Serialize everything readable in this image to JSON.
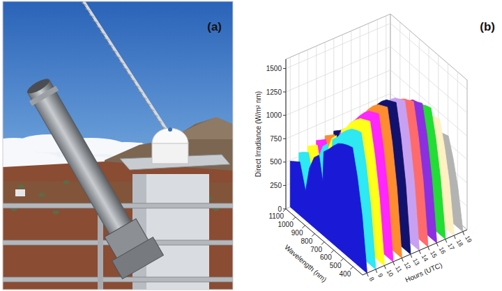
{
  "photo_panel": {
    "label": "(a)"
  },
  "chart_data": {
    "type": "area3d",
    "annotations": [
      "(b)"
    ],
    "x_label": "Wavelength (nm)",
    "y_label": "Direct Irradiance (W/m² nm)",
    "z_label": "Hours (UTC)",
    "x": [
      300,
      350,
      400,
      450,
      500,
      550,
      600,
      650,
      700,
      750,
      760,
      800,
      850,
      900,
      940,
      1000,
      1050,
      1100
    ],
    "xlim": [
      300,
      1100
    ],
    "xticks": [
      400,
      500,
      600,
      700,
      800,
      900,
      1000,
      1100
    ],
    "ylim": [
      0,
      1600
    ],
    "yticks": [
      0,
      250,
      500,
      750,
      1000,
      1250,
      1500
    ],
    "zlim": [
      7.5,
      19.5
    ],
    "zticks": [
      8,
      9,
      10,
      11,
      12,
      13,
      14,
      15,
      16,
      17,
      18,
      19
    ],
    "z": [
      8,
      9,
      10,
      11,
      12,
      13,
      14,
      15,
      16,
      17,
      18,
      19
    ],
    "grid": true,
    "series": [
      {
        "color": "#1a1ad6",
        "values": [
          25,
          570,
          940,
          1210,
          1190,
          1160,
          1120,
          1050,
          970,
          900,
          570,
          820,
          750,
          590,
          310,
          570,
          530,
          490
        ]
      },
      {
        "color": "#2ee8f2",
        "values": [
          30,
          630,
          1040,
          1330,
          1310,
          1280,
          1220,
          1150,
          1060,
          990,
          630,
          900,
          830,
          650,
          340,
          630,
          590,
          540
        ]
      },
      {
        "color": "#ffff1a",
        "values": [
          30,
          670,
          1090,
          1410,
          1380,
          1350,
          1290,
          1220,
          1120,
          1050,
          670,
          950,
          870,
          680,
          360,
          670,
          620,
          570
        ]
      },
      {
        "color": "#ff26ff",
        "values": [
          30,
          690,
          1130,
          1450,
          1420,
          1390,
          1330,
          1250,
          1160,
          1080,
          690,
          980,
          900,
          710,
          370,
          690,
          640,
          590
        ]
      },
      {
        "color": "#ff8c2e",
        "values": [
          30,
          700,
          1150,
          1480,
          1450,
          1420,
          1360,
          1280,
          1180,
          1100,
          700,
          1000,
          920,
          720,
          380,
          700,
          650,
          600
        ]
      },
      {
        "color": "#12126e",
        "values": [
          30,
          710,
          1160,
          1490,
          1460,
          1430,
          1370,
          1290,
          1190,
          1110,
          710,
          1010,
          930,
          730,
          380,
          710,
          660,
          610
        ]
      },
      {
        "color": "#c8a0f2",
        "values": [
          30,
          690,
          1140,
          1470,
          1440,
          1410,
          1350,
          1270,
          1170,
          1090,
          690,
          990,
          910,
          710,
          380,
          690,
          640,
          590
        ]
      },
      {
        "color": "#ff6b6b",
        "values": [
          30,
          670,
          1100,
          1420,
          1390,
          1360,
          1310,
          1230,
          1130,
          1060,
          670,
          960,
          880,
          690,
          360,
          670,
          620,
          580
        ]
      },
      {
        "color": "#8c2fe0",
        "values": [
          30,
          640,
          1060,
          1360,
          1330,
          1310,
          1250,
          1180,
          1090,
          1010,
          640,
          920,
          850,
          660,
          350,
          640,
          600,
          550
        ]
      },
      {
        "color": "#22dd33",
        "values": [
          30,
          600,
          990,
          1270,
          1250,
          1220,
          1170,
          1100,
          1020,
          950,
          600,
          860,
          790,
          620,
          330,
          600,
          560,
          520
        ]
      },
      {
        "color": "#fff1c2",
        "values": [
          20,
          530,
          860,
          1110,
          1090,
          1070,
          1020,
          960,
          890,
          830,
          530,
          750,
          690,
          540,
          290,
          530,
          490,
          450
        ]
      },
      {
        "color": "#b3b3b3",
        "values": [
          20,
          420,
          690,
          890,
          870,
          850,
          820,
          770,
          710,
          660,
          420,
          600,
          550,
          430,
          230,
          420,
          390,
          360
        ]
      }
    ]
  }
}
